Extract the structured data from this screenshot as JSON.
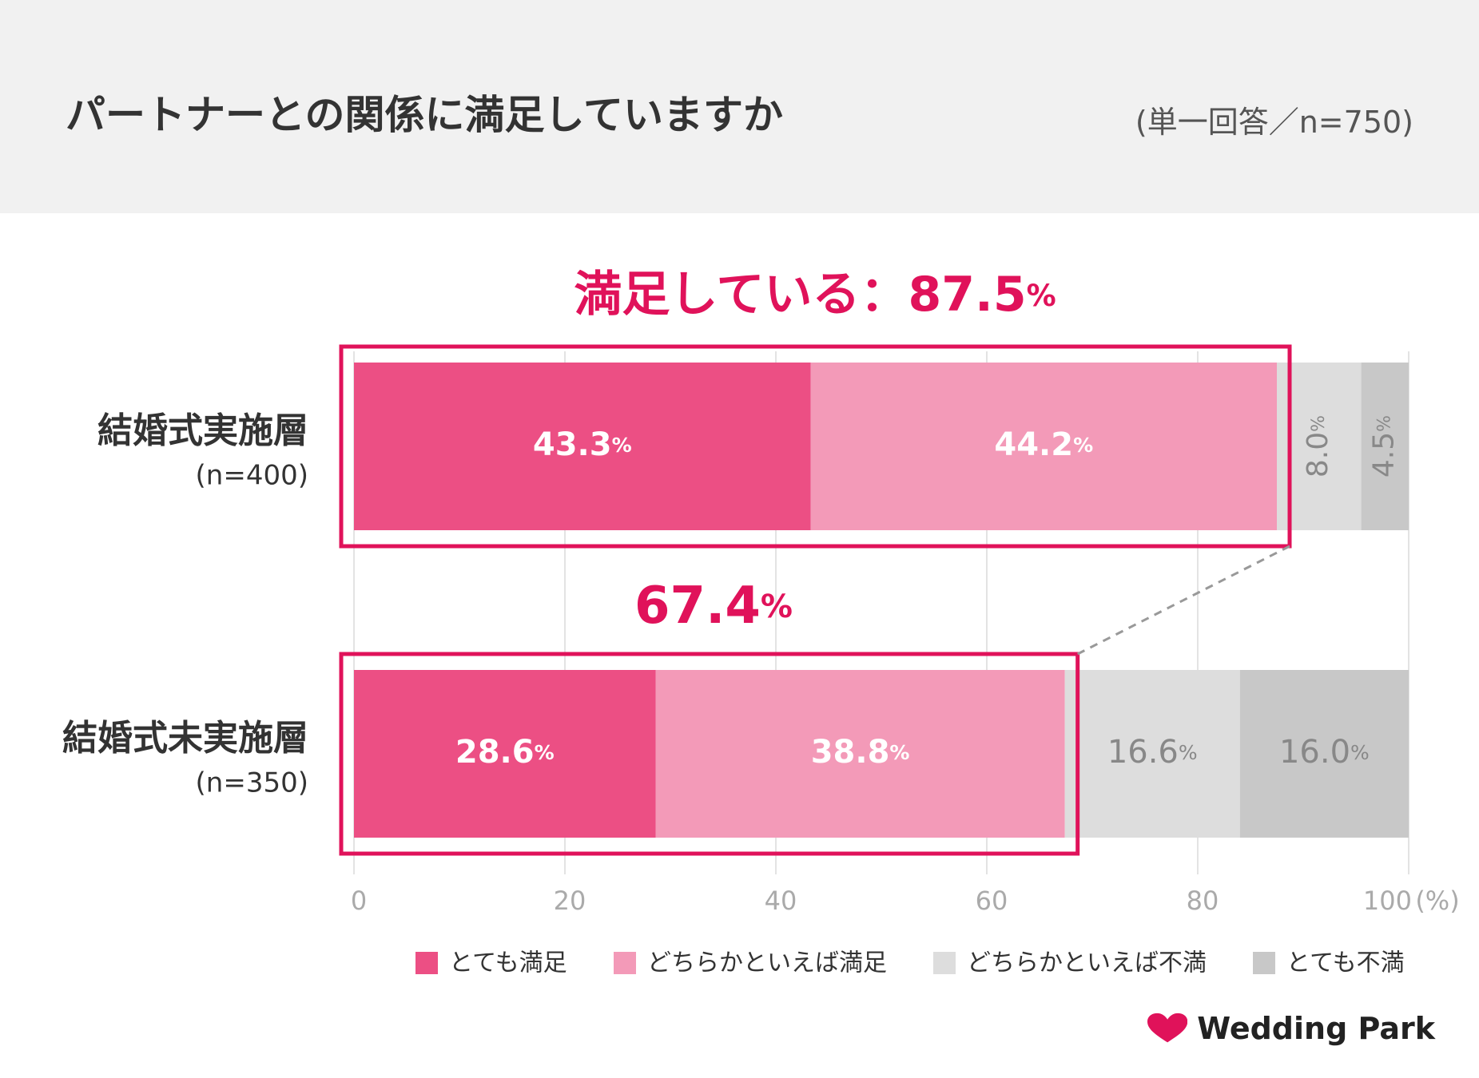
{
  "header": {
    "title": "パートナーとの関係に満足していますか",
    "sample_note": "(単一回答／n=750)"
  },
  "chart_data": {
    "type": "bar",
    "orientation": "horizontal",
    "stacked": true,
    "unit": "%",
    "axis_unit_label": "(%)",
    "categories": [
      {
        "label": "結婚式実施層",
        "n_label": "(n=400)"
      },
      {
        "label": "結婚式未実施層",
        "n_label": "(n=350)"
      }
    ],
    "series": [
      {
        "name": "とても満足",
        "color": "#ec4f84",
        "values": [
          43.3,
          28.6
        ],
        "labels": [
          "43.3",
          "28.6"
        ],
        "label_color": "#ffffff"
      },
      {
        "name": "どちらかといえば満足",
        "color": "#f39ab8",
        "values": [
          44.2,
          38.8
        ],
        "labels": [
          "44.2",
          "38.8"
        ],
        "label_color": "#ffffff"
      },
      {
        "name": "どちらかといえば不満",
        "color": "#dddddd",
        "values": [
          8.0,
          16.6
        ],
        "labels": [
          "8.0",
          "16.6"
        ],
        "label_color": "#888888"
      },
      {
        "name": "とても不満",
        "color": "#c8c8c8",
        "values": [
          4.5,
          16.0
        ],
        "labels": [
          "4.5",
          "16.0"
        ],
        "label_color": "#888888"
      }
    ],
    "xlim": [
      0,
      100
    ],
    "x_ticks": [
      0,
      20,
      40,
      60,
      80,
      100
    ],
    "x_tick_labels": [
      "0",
      "20",
      "40",
      "60",
      "80",
      "100"
    ],
    "grid": true,
    "legend_position": "bottom-center",
    "callouts": [
      {
        "label": "満足している：87.5",
        "value": 87.5
      },
      {
        "label": "67.4",
        "value": 67.4
      }
    ],
    "highlight_color": "#e0125a"
  },
  "logo": {
    "text": "Wedding Park",
    "icon": "heart-icon",
    "color": "#e0125a"
  }
}
